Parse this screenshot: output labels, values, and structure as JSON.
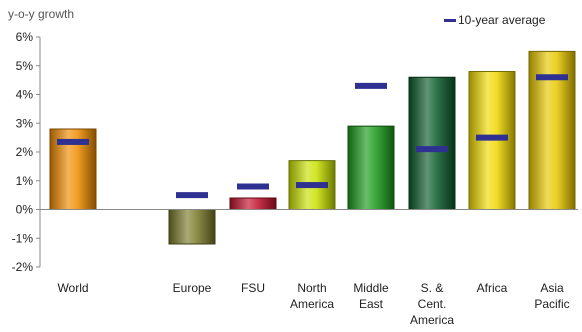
{
  "chart_data": {
    "type": "bar",
    "ylabel": "y-o-y growth",
    "ylim": [
      -2,
      6
    ],
    "y_ticks": [
      "-2%",
      "-1%",
      "0%",
      "1%",
      "2%",
      "3%",
      "4%",
      "5%",
      "6%"
    ],
    "categories": [
      [
        "World"
      ],
      [
        "Europe"
      ],
      [
        "FSU"
      ],
      [
        "North",
        "America"
      ],
      [
        "Middle",
        "East"
      ],
      [
        "S. &",
        "Cent.",
        "America"
      ],
      [
        "Africa"
      ],
      [
        "Asia",
        "Pacific"
      ]
    ],
    "values": [
      2.8,
      -1.2,
      0.4,
      1.7,
      2.9,
      4.6,
      4.8,
      5.5
    ],
    "bar_colors": [
      "#f08c00",
      "#7a7a2a",
      "#c0102a",
      "#c8e000",
      "#1a9a1a",
      "#0a5a2a",
      "#f0d800",
      "#e8c800"
    ],
    "series": [
      {
        "name": "10-year average",
        "values": [
          2.35,
          0.5,
          0.8,
          0.85,
          4.3,
          2.1,
          2.5,
          4.6
        ],
        "color": "#2e3192"
      }
    ],
    "legend_position": "top-right",
    "grid": false
  }
}
